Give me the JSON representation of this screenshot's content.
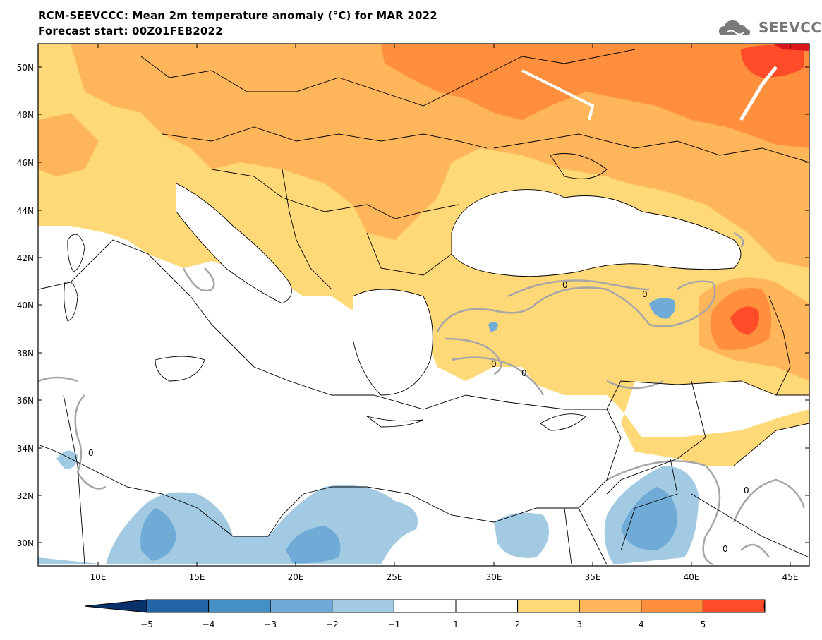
{
  "header": {
    "title": "RCM-SEEVCCC: Mean 2m temperature anomaly (°C) for MAR 2022",
    "subtitle": "Forecast start: 00Z01FEB2022",
    "logo_text": "SEEVCCC",
    "logo_icon": "cloud-icon"
  },
  "map": {
    "type": "filled-contour-map",
    "region": "Eastern Mediterranean / Balkans / Black Sea",
    "lon_range": [
      7,
      45.5
    ],
    "lat_range": [
      29,
      51
    ],
    "lat_labels": [
      "50N",
      "48N",
      "46N",
      "44N",
      "42N",
      "40N",
      "38N",
      "36N",
      "34N",
      "32N",
      "30N"
    ],
    "lon_labels": [
      "10E",
      "15E",
      "20E",
      "25E",
      "30E",
      "35E",
      "40E",
      "45E"
    ],
    "contour_label": "0",
    "colors": {
      "c_m5": "#08306b",
      "c_m4": "#2265a6",
      "c_m3": "#4690c8",
      "c_m2": "#6fabd6",
      "c_m1": "#a2cbe3",
      "c_0": "#ffffff",
      "c_1": "#ffd978",
      "c_2": "#ffb55a",
      "c_3": "#ff8f3c",
      "c_4": "#ff4c28",
      "c_5": "#d9141a",
      "contour": "#a6a6a6",
      "border": "#000000"
    }
  },
  "colorbar": {
    "labels": [
      "−5",
      "−4",
      "−3",
      "−2",
      "−1",
      "1",
      "2",
      "3",
      "4",
      "5"
    ],
    "colors": [
      "#2265a6",
      "#4690c8",
      "#6fabd6",
      "#a2cbe3",
      "#ffffff",
      "#ffffff",
      "#ffd978",
      "#ffb55a",
      "#ff8f3c",
      "#ff4c28"
    ],
    "left_arrow_color": "#08306b",
    "right_arrow_color": "#d9141a"
  }
}
